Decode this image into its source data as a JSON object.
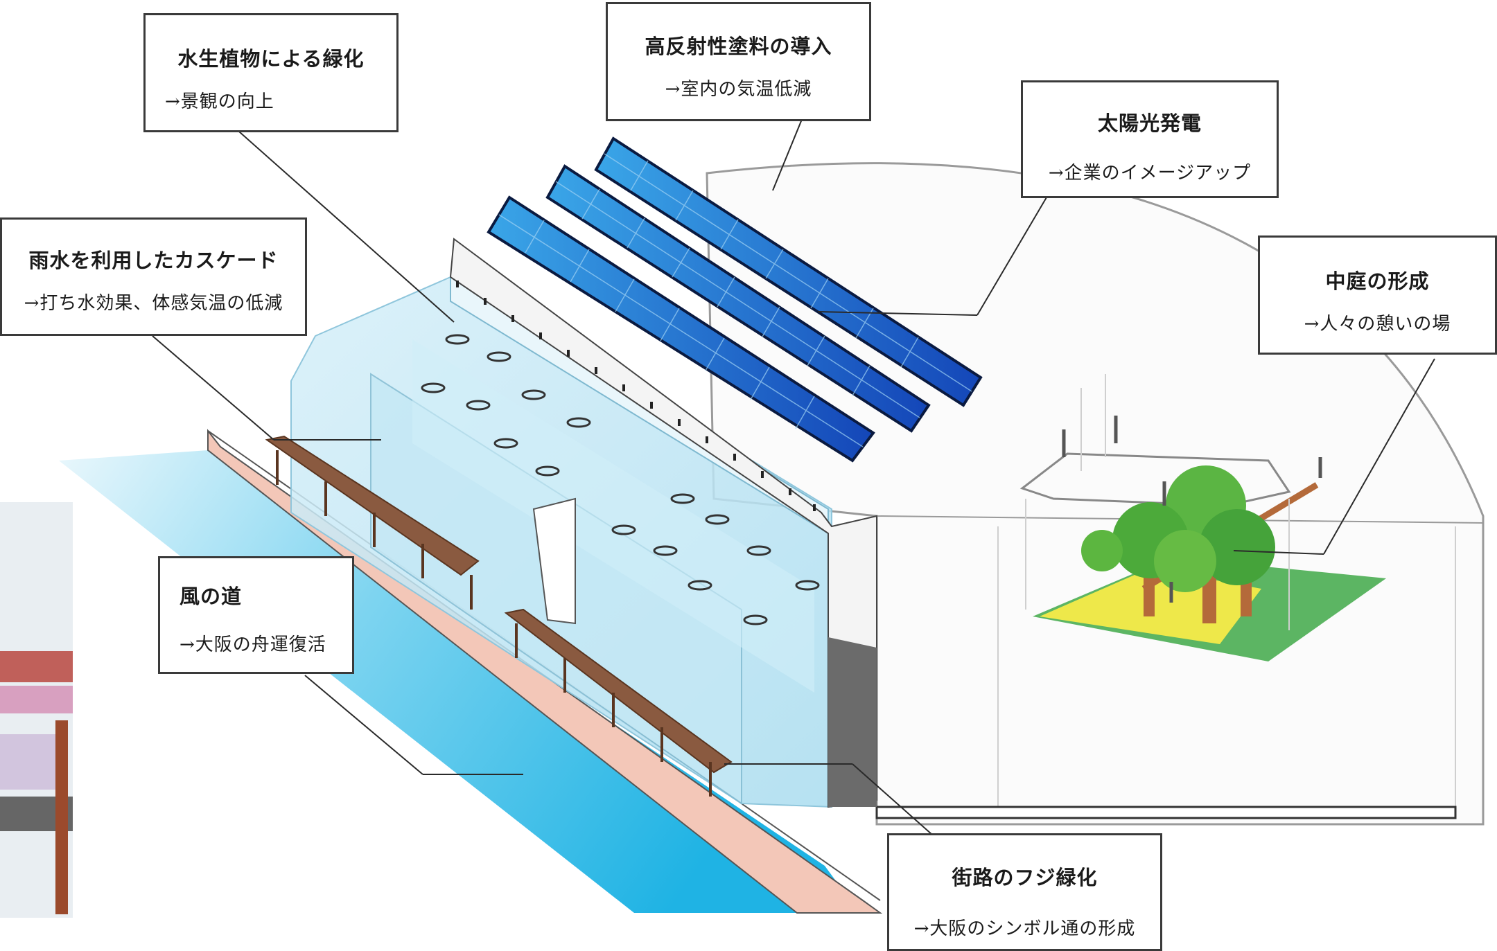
{
  "colors": {
    "panel": "#1f6fd0",
    "panel_grid": "#9fd2f4",
    "water": "#29b8e6",
    "glass": "#bfe6f5",
    "walkway": "#f3c7b8",
    "lawn": "#e8e34a",
    "grass": "#3fa848",
    "tree": "#4caa3a",
    "trunk": "#b46a3a",
    "wisteria": "#8a5a40"
  },
  "callouts": {
    "aquatic": {
      "title": "水生植物による緑化",
      "sub": "→景観の向上"
    },
    "coating": {
      "title": "高反射性塗料の導入",
      "sub": "→室内の気温低減"
    },
    "solar": {
      "title": "太陽光発電",
      "sub": "→企業のイメージアップ"
    },
    "cascade": {
      "title": "雨水を利用したカスケード",
      "sub": "→打ち水効果、体感気温の低減"
    },
    "courtyard": {
      "title": "中庭の形成",
      "sub": "→人々の憩いの場"
    },
    "wind": {
      "title": "風の道",
      "sub": "→大阪の舟運復活"
    },
    "fuji": {
      "title": "街路のフジ緑化",
      "sub": "→大阪のシンボル通の形成"
    }
  }
}
